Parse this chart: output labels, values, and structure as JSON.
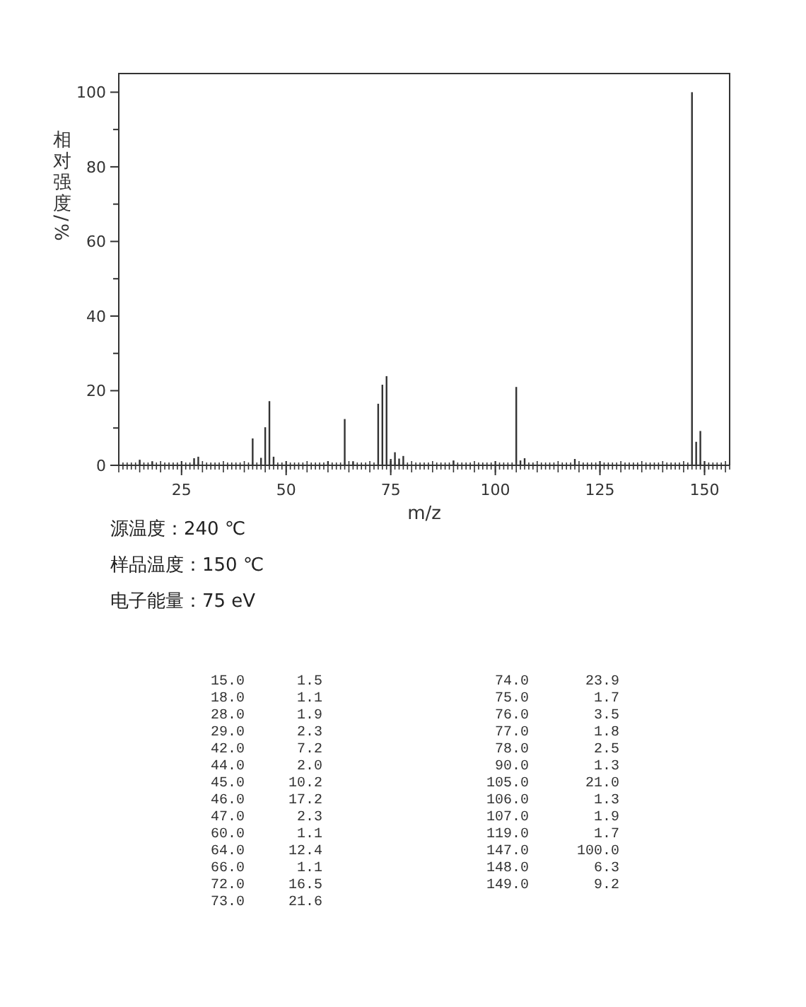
{
  "chart_data": [
    {
      "type": "bar",
      "xlabel": "m/z",
      "ylabel": "相对强度/%",
      "x": [
        15,
        18,
        28,
        29,
        42,
        44,
        45,
        46,
        47,
        60,
        64,
        66,
        72,
        73,
        74,
        75,
        76,
        77,
        78,
        90,
        105,
        106,
        107,
        119,
        147,
        148,
        149
      ],
      "values": [
        1.5,
        1.1,
        1.9,
        2.3,
        7.2,
        2.0,
        10.2,
        17.2,
        2.3,
        1.1,
        12.4,
        1.1,
        16.5,
        21.6,
        23.9,
        1.7,
        3.5,
        1.8,
        2.5,
        1.3,
        21.0,
        1.3,
        1.9,
        1.7,
        100.0,
        6.3,
        9.2
      ],
      "color": "#333333",
      "xlim": [
        10,
        156
      ],
      "ylim": [
        0,
        105
      ],
      "xticks": [
        25,
        50,
        75,
        100,
        125,
        150
      ],
      "yticks": [
        0,
        {
          "value": 10,
          "label": null
        },
        20,
        {
          "value": 30,
          "label": null
        },
        40,
        {
          "value": 50,
          "label": null
        },
        60,
        {
          "value": 70,
          "label": null
        },
        80,
        {
          "value": 90,
          "label": null
        },
        100
      ],
      "annotations": [
        "源温度：240 ℃",
        "样品温度：150 ℃",
        "电子能量：75 eV"
      ]
    },
    {
      "type": "other",
      "annotations": [
        "15.0",
        "1.5",
        "18.0",
        "1.1",
        "28.0",
        "1.9",
        "29.0",
        "2.3",
        "42.0",
        "7.2",
        "44.0",
        "2.0",
        "45.0",
        "10.2",
        "46.0",
        "17.2",
        "47.0",
        "2.3",
        "60.0",
        "1.1",
        "64.0",
        "12.4",
        "66.0",
        "1.1",
        "72.0",
        "16.5",
        "73.0",
        "21.6",
        "74.0",
        "23.9",
        "75.0",
        "1.7",
        "76.0",
        "3.5",
        "77.0",
        "1.8",
        "78.0",
        "2.5",
        "90.0",
        "1.3",
        "105.0",
        "21.0",
        "106.0",
        "1.3",
        "107.0",
        "1.9",
        "119.0",
        "1.7",
        "147.0",
        "100.0",
        "148.0",
        "6.3",
        "149.0",
        "9.2"
      ]
    }
  ]
}
